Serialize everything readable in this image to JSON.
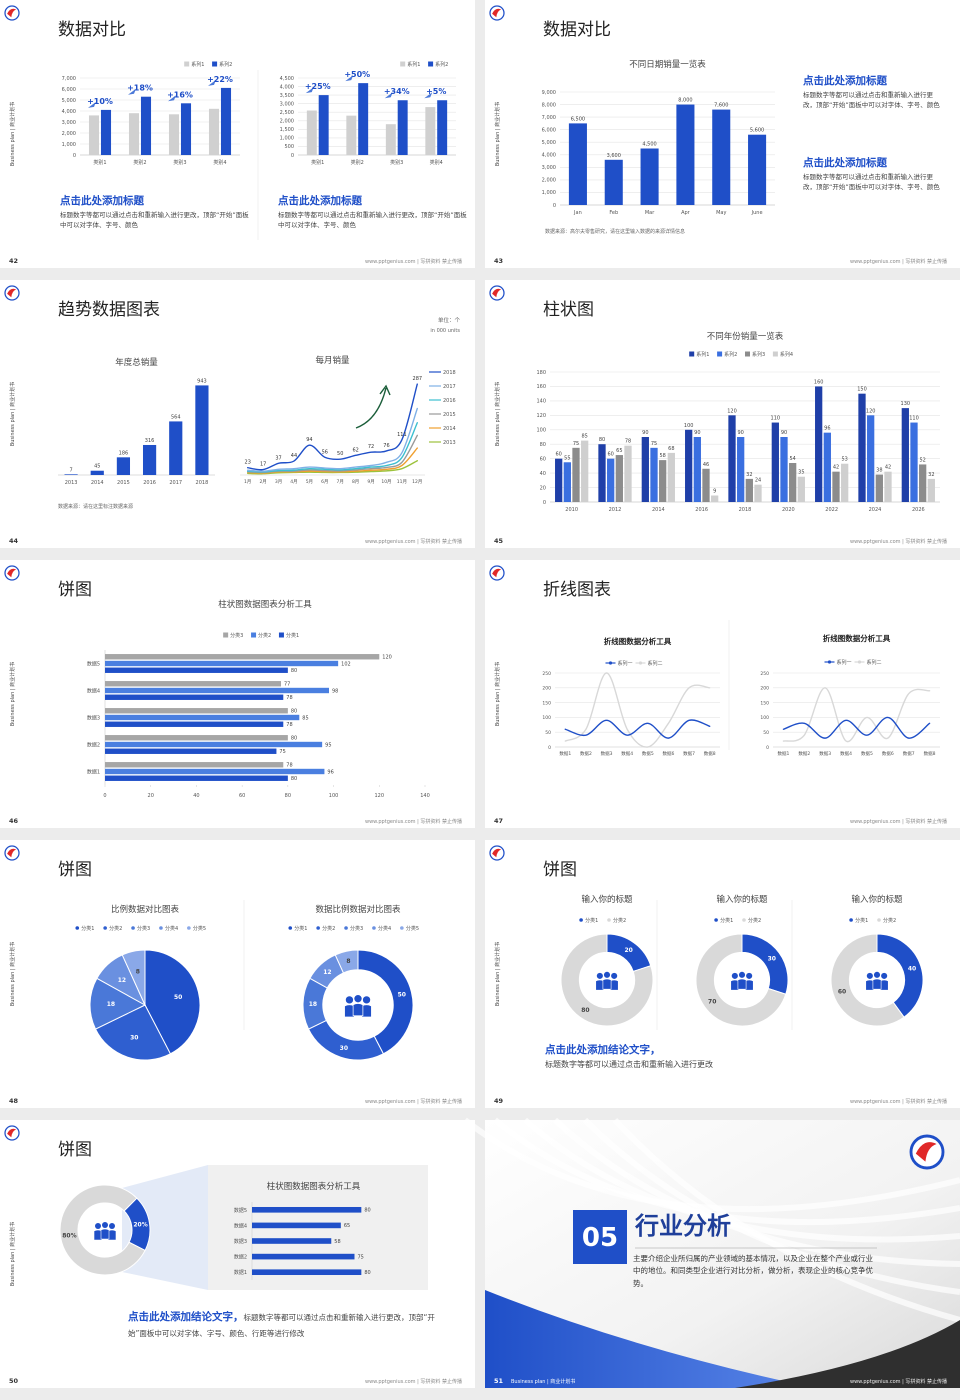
{
  "footer": "www.pptgenius.com | 写拼资料 禁止传播",
  "side_label": "Business plan | 商业计划书",
  "slides": [
    {
      "page": 42,
      "title": "数据对比",
      "charts": [
        {
          "type": "bar",
          "legend": "top-right",
          "grid": true,
          "ylim": [
            0,
            7000
          ],
          "yticks": [
            0,
            {
              "value": 1000,
              "label": "1,000"
            },
            {
              "value": 2000,
              "label": "2,000"
            },
            {
              "value": 3000,
              "label": "3,000"
            },
            {
              "value": 4000,
              "label": "4,000"
            },
            {
              "value": 5000,
              "label": "5,000"
            },
            {
              "value": 6000,
              "label": "6,000"
            },
            {
              "value": 7000,
              "label": "7,000"
            }
          ],
          "categories": [
            "类别1",
            "类别2",
            "类别3",
            "类别4"
          ],
          "series": [
            {
              "name": "系列1",
              "color": "#d0d0d0",
              "values": [
                3600,
                3800,
                3700,
                4200
              ]
            },
            {
              "name": "系列2",
              "color": "#1f4fc8",
              "values": [
                4100,
                5300,
                4700,
                6100
              ]
            }
          ],
          "annotations": [
            "+10%",
            "+18%",
            "+16%",
            "+22%"
          ]
        },
        {
          "type": "bar",
          "legend": "top-right",
          "grid": true,
          "ylim": [
            0,
            4500
          ],
          "yticks": [
            0,
            500,
            {
              "value": 1000,
              "label": "1,000"
            },
            {
              "value": 1500,
              "label": "1,500"
            },
            {
              "value": 2000,
              "label": "2,000"
            },
            {
              "value": 2500,
              "label": "2,500"
            },
            {
              "value": 3000,
              "label": "3,000"
            },
            {
              "value": 3500,
              "label": "3,500"
            },
            {
              "value": 4000,
              "label": "4,000"
            },
            {
              "value": 4500,
              "label": "4,500"
            }
          ],
          "categories": [
            "类别1",
            "类别2",
            "类别3",
            "类别4"
          ],
          "series": [
            {
              "name": "系列1",
              "color": "#d0d0d0",
              "values": [
                2600,
                2300,
                1800,
                2800
              ]
            },
            {
              "name": "系列2",
              "color": "#1f4fc8",
              "values": [
                3500,
                4200,
                3200,
                3200
              ]
            }
          ],
          "annotations": [
            "+25%",
            "+50%",
            "+34%",
            "+5%"
          ]
        }
      ],
      "blocks": [
        {
          "heading": "点击此处添加标题",
          "body": "标题数字等都可以通过点击和重新输入进行更改，顶部“开始”面板中可以对字体、字号、颜色"
        },
        {
          "heading": "点击此处添加标题",
          "body": "标题数字等都可以通过点击和重新输入进行更改，顶部“开始”面板中可以对字体、字号、颜色"
        }
      ]
    },
    {
      "page": 43,
      "title": "数据对比",
      "charts": [
        {
          "type": "bar",
          "title": "不同日期销量一览表",
          "grid": true,
          "data_labels": true,
          "ylim": [
            0,
            9000
          ],
          "yticks": [
            0,
            {
              "value": 1000,
              "label": "1,000"
            },
            {
              "value": 2000,
              "label": "2,000"
            },
            {
              "value": 3000,
              "label": "3,000"
            },
            {
              "value": 4000,
              "label": "4,000"
            },
            {
              "value": 5000,
              "label": "5,000"
            },
            {
              "value": 6000,
              "label": "6,000"
            },
            {
              "value": 7000,
              "label": "7,000"
            },
            {
              "value": 8000,
              "label": "8,000"
            },
            {
              "value": 9000,
              "label": "9,000"
            }
          ],
          "categories": [
            "Jan",
            "Feb",
            "Mar",
            "Apr",
            "May",
            "June"
          ],
          "color": "#1f4fc8",
          "values": [
            6500,
            3600,
            4500,
            8000,
            7600,
            5600
          ],
          "value_labels": [
            "6,500",
            "3,600",
            "4,500",
            "8,000",
            "7,600",
            "5,600"
          ]
        }
      ],
      "blocks": [
        {
          "heading": "点击此处添加标题",
          "body": "标题数字等都可以通过点击和重新输入进行更改，顶部“开始”面板中可以对字体、字号、颜色"
        },
        {
          "heading": "点击此处添加标题",
          "body": "标题数字等都可以通过点击和重新输入进行更改，顶部“开始”面板中可以对字体、字号、颜色"
        }
      ],
      "notes": [
        "数据来源：高尔夫零售研究，请在这里输入数据的来源详情信息"
      ]
    },
    {
      "page": 44,
      "title": "趋势数据图表",
      "charts": [
        {
          "type": "bar",
          "title": "年度总销量",
          "data_labels": true,
          "ylim": [
            0,
            1000
          ],
          "categories": [
            "2013",
            "2014",
            "2015",
            "2016",
            "2017",
            "2018"
          ],
          "color": "#1f4fc8",
          "values": [
            7,
            45,
            186,
            316,
            564,
            943
          ]
        },
        {
          "type": "line",
          "title": "每月销量",
          "legend": "right",
          "smooth": true,
          "ylim": [
            0,
            300
          ],
          "categories": [
            "1月",
            "2月",
            "3月",
            "4月",
            "5月",
            "6月",
            "7月",
            "8月",
            "9月",
            "10月",
            "11月",
            "12月"
          ],
          "series": [
            {
              "name": "2018",
              "color": "#1f4fc8",
              "data_labels": true,
              "values": [
                23,
                17,
                37,
                44,
                94,
                56,
                50,
                62,
                72,
                76,
                111,
                287
              ]
            },
            {
              "name": "2017",
              "color": "#7fb0e6",
              "values": [
                15,
                12,
                18,
                20,
                25,
                22,
                20,
                25,
                30,
                40,
                70,
                210
              ]
            },
            {
              "name": "2016",
              "color": "#3cbfd0",
              "values": [
                12,
                10,
                14,
                15,
                20,
                18,
                16,
                20,
                25,
                30,
                55,
                165
              ]
            },
            {
              "name": "2015",
              "color": "#9a9a9a",
              "values": [
                10,
                8,
                12,
                12,
                16,
                14,
                13,
                16,
                20,
                24,
                40,
                125
              ]
            },
            {
              "name": "2014",
              "color": "#f0a030",
              "values": [
                8,
                6,
                10,
                10,
                12,
                11,
                10,
                12,
                15,
                18,
                30,
                85
              ]
            },
            {
              "name": "2013",
              "color": "#9cc23c",
              "values": [
                5,
                4,
                7,
                8,
                9,
                8,
                8,
                9,
                11,
                13,
                20,
                45
              ]
            }
          ]
        }
      ],
      "notes": [
        "单位：个",
        "in 000 units",
        "数据来源：请在这里标注数据来源"
      ]
    },
    {
      "page": 45,
      "title": "柱状图",
      "charts": [
        {
          "type": "bar",
          "title": "不同年份销量一览表",
          "legend": "top",
          "grid": true,
          "data_labels": true,
          "ylim": [
            0,
            180
          ],
          "yticks": [
            0,
            20,
            40,
            60,
            80,
            100,
            120,
            140,
            160,
            180
          ],
          "categories": [
            "2010",
            "2012",
            "2014",
            "2016",
            "2018",
            "2020",
            "2022",
            "2024",
            "2026"
          ],
          "series": [
            {
              "name": "系列1",
              "color": "#1f3fa8",
              "values": [
                60,
                80,
                90,
                100,
                120,
                110,
                160,
                150,
                130
              ]
            },
            {
              "name": "系列2",
              "color": "#3a6fe0",
              "values": [
                55,
                60,
                75,
                90,
                90,
                90,
                96,
                120,
                110
              ]
            },
            {
              "name": "系列3",
              "color": "#8c8c8c",
              "values": [
                75,
                65,
                58,
                46,
                32,
                54,
                42,
                38,
                52
              ]
            },
            {
              "name": "系列4",
              "color": "#cfcfcf",
              "values": [
                85,
                78,
                68,
                9,
                24,
                35,
                53,
                42,
                32
              ]
            }
          ]
        }
      ]
    },
    {
      "page": 46,
      "title": "饼图",
      "charts": [
        {
          "type": "hbar",
          "title": "柱状图数据图表分析工具",
          "legend": "top",
          "data_labels": true,
          "xlim": [
            0,
            140
          ],
          "xticks": [
            0,
            20,
            40,
            60,
            80,
            100,
            120,
            140
          ],
          "categories": [
            "数据1",
            "数据2",
            "数据3",
            "数据4",
            "数据5"
          ],
          "series": [
            {
              "name": "分类3",
              "color": "#a6a6a6",
              "values": [
                78,
                80,
                80,
                77,
                120
              ]
            },
            {
              "name": "分类2",
              "color": "#4a7fe0",
              "values": [
                96,
                95,
                85,
                98,
                102
              ]
            },
            {
              "name": "分类1",
              "color": "#1f4fc8",
              "values": [
                80,
                75,
                78,
                78,
                80
              ]
            }
          ]
        }
      ]
    },
    {
      "page": 47,
      "title": "折线图表",
      "charts": [
        {
          "type": "line",
          "title": "折线图数据分析工具",
          "legend": "top",
          "grid": true,
          "smooth": true,
          "ylim": [
            0,
            250
          ],
          "yticks": [
            0,
            50,
            100,
            150,
            200,
            250
          ],
          "categories": [
            "数据1",
            "数据2",
            "数据3",
            "数据4",
            "数据5",
            "数据6",
            "数据7",
            "数据8"
          ],
          "series": [
            {
              "name": "系列一",
              "color": "#1f4fc8",
              "values": [
                60,
                40,
                90,
                40,
                80,
                30,
                90,
                70
              ]
            },
            {
              "name": "系列二",
              "color": "#d8d8d8",
              "values": [
                20,
                60,
                250,
                60,
                0,
                80,
                200,
                200
              ]
            }
          ]
        },
        {
          "type": "line",
          "title": "折线图数据分析工具",
          "legend": "top",
          "grid": true,
          "smooth": true,
          "ylim": [
            0,
            250
          ],
          "yticks": [
            0,
            50,
            100,
            150,
            200,
            250
          ],
          "categories": [
            "数据1",
            "数据2",
            "数据3",
            "数据4",
            "数据5",
            "数据6",
            "数据7",
            "数据8"
          ],
          "series": [
            {
              "name": "系列一",
              "color": "#1f4fc8",
              "values": [
                60,
                80,
                30,
                90,
                40,
                100,
                30,
                80
              ]
            },
            {
              "name": "系列二",
              "color": "#d8d8d8",
              "values": [
                20,
                40,
                200,
                20,
                100,
                30,
                180,
                190
              ]
            }
          ]
        }
      ]
    },
    {
      "page": 48,
      "title": "饼图",
      "charts": [
        {
          "type": "pie",
          "title": "比例数据对比图表",
          "legend": "top",
          "categories": [
            "分类1",
            "分类2",
            "分类3",
            "分类4",
            "分类5"
          ],
          "values": [
            50,
            30,
            18,
            12,
            8
          ],
          "colors": [
            "#1f4fc8",
            "#2f5fd0",
            "#4a78d8",
            "#6a90e0",
            "#8aa8e8"
          ]
        },
        {
          "type": "donut",
          "title": "数据比例数据对比图表",
          "legend": "top",
          "categories": [
            "分类1",
            "分类2",
            "分类3",
            "分类4",
            "分类5"
          ],
          "values": [
            50,
            30,
            18,
            12,
            8
          ],
          "colors": [
            "#1f4fc8",
            "#2f5fd0",
            "#4a78d8",
            "#6a90e0",
            "#8aa8e8"
          ]
        }
      ]
    },
    {
      "page": 49,
      "title": "饼图",
      "charts": [
        {
          "type": "donut",
          "title": "输入你的标题",
          "legend": "top",
          "categories": [
            "分类1",
            "分类2"
          ],
          "values": [
            20,
            80
          ],
          "colors": [
            "#1f4fc8",
            "#d9d9d9"
          ]
        },
        {
          "type": "donut",
          "title": "输入你的标题",
          "legend": "top",
          "categories": [
            "分类1",
            "分类2"
          ],
          "values": [
            30,
            70
          ],
          "colors": [
            "#1f4fc8",
            "#d9d9d9"
          ]
        },
        {
          "type": "donut",
          "title": "输入你的标题",
          "legend": "top",
          "categories": [
            "分类1",
            "分类2"
          ],
          "values": [
            40,
            60
          ],
          "colors": [
            "#1f4fc8",
            "#d9d9d9"
          ]
        }
      ],
      "blocks": [
        {
          "heading": "点击此处添加结论文字，",
          "body": "标题数字等都可以通过点击和重新输入进行更改"
        }
      ]
    },
    {
      "page": 50,
      "title": "饼图",
      "charts": [
        {
          "type": "donut",
          "values": [
            20,
            80
          ],
          "value_labels": [
            "20%",
            "80%"
          ],
          "colors": [
            "#1f4fc8",
            "#d9d9d9"
          ]
        },
        {
          "type": "hbar",
          "title": "柱状图数据图表分析工具",
          "data_labels": true,
          "xlim": [
            0,
            90
          ],
          "categories": [
            "数据1",
            "数据2",
            "数据3",
            "数据4",
            "数据5"
          ],
          "color": "#1f4fc8",
          "values": [
            80,
            75,
            58,
            65,
            80
          ]
        }
      ],
      "blocks": [
        {
          "heading": "点击此处添加结论文字，",
          "body": "标题数字等都可以通过点击和重新输入进行更改，顶部“开始”面板中可以对字体、字号、颜色、行距等进行修改"
        }
      ]
    },
    {
      "page": 51,
      "section": {
        "number": "05",
        "title": "行业分析",
        "body": "主要介绍企业所归属的产业领域的基本情况，以及企业在整个产业或行业中的地位。和同类型企业进行对比分析，做分析，表现企业的核心竞争优势。"
      }
    }
  ]
}
